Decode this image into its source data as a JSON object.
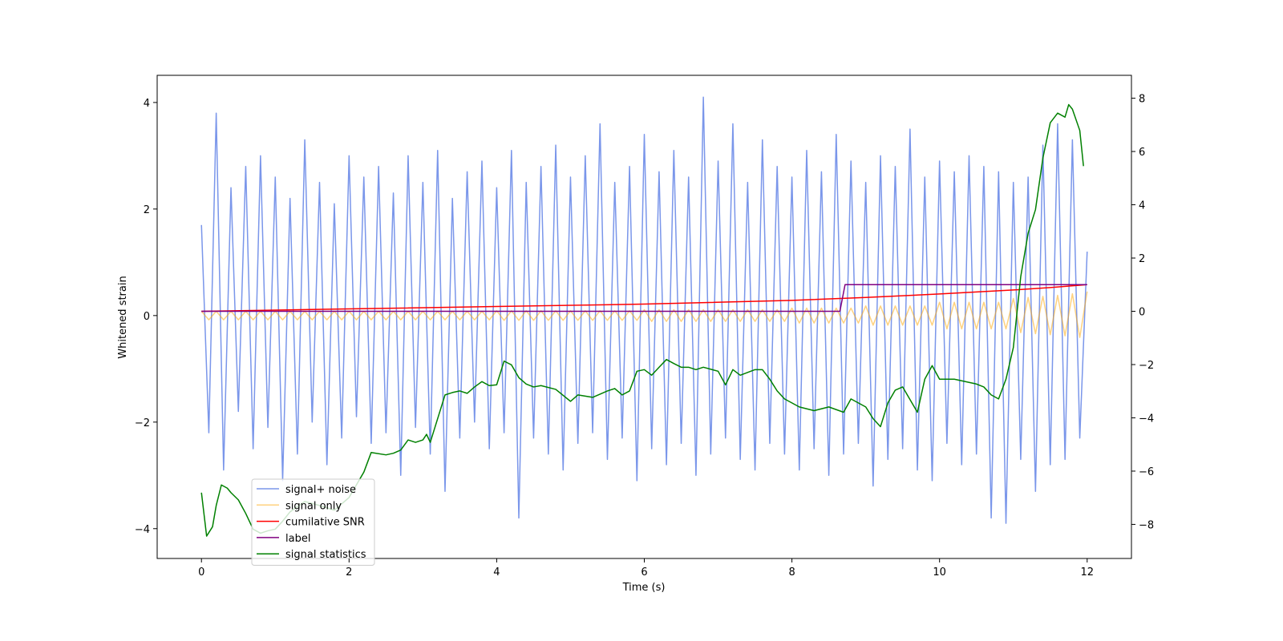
{
  "chart_data": {
    "type": "line",
    "xlabel": "Time (s)",
    "ylabel": "Whitened strain",
    "xlim": [
      -0.6,
      12.6
    ],
    "ylim": [
      -4.56,
      4.51
    ],
    "y2lim": [
      -9.28,
      8.86
    ],
    "xticks": [
      0,
      2,
      4,
      6,
      8,
      10,
      12
    ],
    "yticks": [
      {
        "value": -4,
        "label": "−4"
      },
      {
        "value": -2,
        "label": "−2"
      },
      0,
      2,
      4
    ],
    "y2ticks": [
      {
        "value": -8,
        "label": "−8"
      },
      {
        "value": -6,
        "label": "−6"
      },
      {
        "value": -4,
        "label": "−4"
      },
      {
        "value": -2,
        "label": "−2"
      },
      0,
      2,
      4,
      6,
      8
    ],
    "grid": false,
    "legend": "lower left",
    "series": [
      {
        "name": "signal+ noise",
        "color": "royalblue",
        "opacity": 0.7,
        "x": [
          0,
          0.1,
          0.2,
          0.3,
          0.4,
          0.5,
          0.6,
          0.7,
          0.8,
          0.9,
          1,
          1.1,
          1.2,
          1.3,
          1.4,
          1.5,
          1.6,
          1.7,
          1.8,
          1.9,
          2,
          2.1,
          2.2,
          2.3,
          2.4,
          2.5,
          2.6,
          2.7,
          2.8,
          2.9,
          3,
          3.1,
          3.2,
          3.3,
          3.4,
          3.5,
          3.6,
          3.7,
          3.8,
          3.9,
          4,
          4.1,
          4.2,
          4.3,
          4.4,
          4.5,
          4.6,
          4.7,
          4.8,
          4.9,
          5,
          5.1,
          5.2,
          5.3,
          5.4,
          5.5,
          5.6,
          5.7,
          5.8,
          5.9,
          6,
          6.1,
          6.2,
          6.3,
          6.4,
          6.5,
          6.6,
          6.7,
          6.8,
          6.9,
          7,
          7.1,
          7.2,
          7.3,
          7.4,
          7.5,
          7.6,
          7.7,
          7.8,
          7.9,
          8,
          8.1,
          8.2,
          8.3,
          8.4,
          8.5,
          8.6,
          8.7,
          8.8,
          8.9,
          9,
          9.1,
          9.2,
          9.3,
          9.4,
          9.5,
          9.6,
          9.7,
          9.8,
          9.9,
          10,
          10.1,
          10.2,
          10.3,
          10.4,
          10.5,
          10.6,
          10.7,
          10.8,
          10.9,
          11,
          11.1,
          11.2,
          11.3,
          11.4,
          11.5,
          11.6,
          11.7,
          11.8,
          11.9,
          12
        ],
        "values": [
          1.7,
          -2.2,
          3.8,
          -2.9,
          2.4,
          -1.8,
          2.8,
          -2.5,
          3.0,
          -2.1,
          2.6,
          -3.1,
          2.2,
          -2.6,
          3.3,
          -2.0,
          2.5,
          -2.8,
          2.1,
          -2.3,
          3.0,
          -1.9,
          2.6,
          -2.4,
          2.8,
          -2.2,
          2.3,
          -3.0,
          3.0,
          -2.1,
          2.5,
          -2.6,
          3.1,
          -3.3,
          2.2,
          -2.3,
          2.7,
          -2.0,
          2.9,
          -2.5,
          2.4,
          -2.2,
          3.1,
          -3.8,
          2.5,
          -2.3,
          2.8,
          -2.6,
          3.2,
          -2.9,
          2.6,
          -2.4,
          3.0,
          -2.2,
          3.6,
          -2.7,
          2.5,
          -2.3,
          2.8,
          -3.1,
          3.4,
          -2.5,
          2.7,
          -2.8,
          3.1,
          -2.4,
          2.6,
          -3.0,
          4.1,
          -2.6,
          2.9,
          -2.3,
          3.6,
          -2.7,
          2.5,
          -2.9,
          3.3,
          -2.4,
          2.8,
          -2.6,
          2.6,
          -2.9,
          3.1,
          -2.5,
          2.7,
          -3.0,
          3.4,
          -2.6,
          2.9,
          -2.4,
          2.5,
          -3.2,
          3.0,
          -2.7,
          2.8,
          -2.5,
          3.5,
          -2.9,
          2.6,
          -3.1,
          2.9,
          -2.4,
          2.7,
          -2.8,
          3.0,
          -2.6,
          2.8,
          -3.8,
          2.7,
          -3.9,
          2.5,
          -2.7,
          2.6,
          -3.3,
          3.2,
          -2.8,
          3.6,
          -2.7,
          3.3,
          -2.3,
          1.2
        ]
      },
      {
        "name": "signal only",
        "color": "orange",
        "opacity": 0.5,
        "x": [
          0,
          0.1,
          0.2,
          0.3,
          0.4,
          0.5,
          0.6,
          0.7,
          0.8,
          0.9,
          1,
          1.1,
          1.2,
          1.3,
          1.4,
          1.5,
          1.6,
          1.7,
          1.8,
          1.9,
          2,
          2.1,
          2.2,
          2.3,
          2.4,
          2.5,
          2.6,
          2.7,
          2.8,
          2.9,
          3,
          3.1,
          3.2,
          3.3,
          3.4,
          3.5,
          3.6,
          3.7,
          3.8,
          3.9,
          4,
          4.1,
          4.2,
          4.3,
          4.4,
          4.5,
          4.6,
          4.7,
          4.8,
          4.9,
          5,
          5.1,
          5.2,
          5.3,
          5.4,
          5.5,
          5.6,
          5.7,
          5.8,
          5.9,
          6,
          6.1,
          6.2,
          6.3,
          6.4,
          6.5,
          6.6,
          6.7,
          6.8,
          6.9,
          7,
          7.1,
          7.2,
          7.3,
          7.4,
          7.5,
          7.6,
          7.7,
          7.8,
          7.9,
          8,
          8.1,
          8.2,
          8.3,
          8.4,
          8.5,
          8.6,
          8.7,
          8.8,
          8.9,
          9,
          9.1,
          9.2,
          9.3,
          9.4,
          9.5,
          9.6,
          9.7,
          9.8,
          9.9,
          10,
          10.1,
          10.2,
          10.3,
          10.4,
          10.5,
          10.6,
          10.7,
          10.8,
          10.9,
          11,
          11.1,
          11.2,
          11.3,
          11.4,
          11.5,
          11.6,
          11.7,
          11.8,
          11.9,
          12
        ],
        "values": [
          0.08,
          -0.08,
          0.08,
          -0.08,
          0.08,
          -0.08,
          0.08,
          -0.08,
          0.08,
          -0.08,
          0.08,
          -0.08,
          0.08,
          -0.08,
          0.08,
          -0.08,
          0.08,
          -0.08,
          0.08,
          -0.08,
          0.08,
          -0.08,
          0.08,
          -0.08,
          0.08,
          -0.08,
          0.08,
          -0.08,
          0.08,
          -0.08,
          0.08,
          -0.08,
          0.08,
          -0.08,
          0.08,
          -0.08,
          0.08,
          -0.08,
          0.08,
          -0.08,
          0.09,
          -0.09,
          0.09,
          -0.09,
          0.09,
          -0.09,
          0.09,
          -0.09,
          0.09,
          -0.09,
          0.09,
          -0.09,
          0.09,
          -0.09,
          0.09,
          -0.09,
          0.09,
          -0.09,
          0.09,
          -0.09,
          0.11,
          -0.11,
          0.11,
          -0.11,
          0.11,
          -0.11,
          0.11,
          -0.11,
          0.11,
          -0.11,
          0.11,
          -0.11,
          0.11,
          -0.11,
          0.11,
          -0.11,
          0.11,
          -0.11,
          0.11,
          -0.11,
          0.14,
          -0.14,
          0.14,
          -0.14,
          0.14,
          -0.14,
          0.14,
          -0.14,
          0.14,
          -0.14,
          0.18,
          -0.18,
          0.18,
          -0.18,
          0.18,
          -0.18,
          0.18,
          -0.18,
          0.18,
          -0.18,
          0.25,
          -0.25,
          0.25,
          -0.25,
          0.25,
          -0.25,
          0.25,
          -0.25,
          0.25,
          -0.25,
          0.32,
          -0.32,
          0.34,
          -0.34,
          0.36,
          -0.36,
          0.38,
          -0.38,
          0.41,
          -0.41,
          0.45
        ]
      },
      {
        "name": "cumilative SNR",
        "color": "red",
        "opacity": 1,
        "axis": "y2",
        "x": [
          0,
          2,
          4,
          6,
          8,
          9,
          10,
          11,
          11.5,
          12
        ],
        "values": [
          0,
          0.09,
          0.18,
          0.27,
          0.41,
          0.52,
          0.65,
          0.8,
          0.89,
          1.0
        ]
      },
      {
        "name": "label",
        "color": "purple",
        "opacity": 1,
        "axis": "y2",
        "x": [
          0,
          8.65,
          8.72,
          12
        ],
        "values": [
          0,
          0,
          1,
          1
        ]
      },
      {
        "name": "signal statistics",
        "color": "green",
        "opacity": 1,
        "axis": "y2",
        "x": [
          0,
          0.07,
          0.15,
          0.2,
          0.27,
          0.35,
          0.4,
          0.5,
          0.6,
          0.7,
          0.8,
          0.9,
          1.0,
          1.1,
          1.2,
          1.4,
          1.6,
          1.8,
          2.0,
          2.2,
          2.3,
          2.5,
          2.6,
          2.7,
          2.8,
          2.9,
          3.0,
          3.05,
          3.1,
          3.3,
          3.4,
          3.5,
          3.6,
          3.7,
          3.8,
          3.9,
          4.0,
          4.1,
          4.2,
          4.3,
          4.4,
          4.5,
          4.6,
          4.8,
          5.0,
          5.1,
          5.3,
          5.5,
          5.6,
          5.7,
          5.8,
          5.9,
          6.0,
          6.1,
          6.2,
          6.3,
          6.4,
          6.5,
          6.6,
          6.7,
          6.8,
          7.0,
          7.1,
          7.2,
          7.3,
          7.5,
          7.6,
          7.7,
          7.8,
          7.9,
          8.1,
          8.3,
          8.5,
          8.7,
          8.8,
          9.0,
          9.1,
          9.2,
          9.3,
          9.4,
          9.5,
          9.7,
          9.8,
          9.9,
          10.0,
          10.2,
          10.5,
          10.6,
          10.7,
          10.8,
          10.9,
          11.0,
          11.1,
          11.2,
          11.3,
          11.4,
          11.5,
          11.6,
          11.7,
          11.75,
          11.8,
          11.9,
          11.95
        ],
        "values": [
          -6.81,
          -8.44,
          -8.09,
          -7.29,
          -6.52,
          -6.64,
          -6.81,
          -7.08,
          -7.59,
          -8.18,
          -8.33,
          -8.24,
          -8.18,
          -7.88,
          -7.53,
          -7.14,
          -7.29,
          -7.47,
          -6.99,
          -6.04,
          -5.3,
          -5.39,
          -5.33,
          -5.21,
          -4.83,
          -4.92,
          -4.83,
          -4.62,
          -4.92,
          -3.14,
          -3.05,
          -2.99,
          -3.08,
          -2.84,
          -2.64,
          -2.79,
          -2.76,
          -1.87,
          -2.01,
          -2.49,
          -2.73,
          -2.84,
          -2.79,
          -2.93,
          -3.38,
          -3.14,
          -3.23,
          -2.99,
          -2.9,
          -3.14,
          -2.99,
          -2.25,
          -2.19,
          -2.4,
          -2.1,
          -1.81,
          -1.96,
          -2.1,
          -2.1,
          -2.19,
          -2.1,
          -2.25,
          -2.76,
          -2.19,
          -2.4,
          -2.19,
          -2.19,
          -2.55,
          -2.99,
          -3.29,
          -3.59,
          -3.73,
          -3.59,
          -3.79,
          -3.29,
          -3.59,
          -4.03,
          -4.33,
          -3.44,
          -2.96,
          -2.84,
          -3.79,
          -2.55,
          -2.04,
          -2.55,
          -2.55,
          -2.73,
          -2.84,
          -3.14,
          -3.29,
          -2.55,
          -1.36,
          1.3,
          2.93,
          3.82,
          5.75,
          7.08,
          7.44,
          7.29,
          7.76,
          7.59,
          6.79,
          5.45
        ]
      }
    ]
  }
}
